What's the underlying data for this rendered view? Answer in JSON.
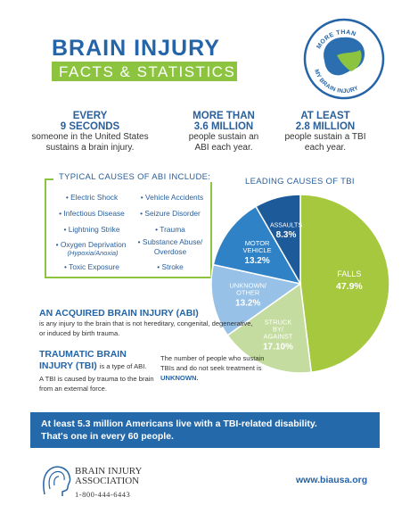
{
  "header": {
    "title": "BRAIN INJURY",
    "subtitle": "FACTS & STATISTICS"
  },
  "logo": {
    "top_text": "MORE THAN",
    "bottom_text": "MY BRAIN INJURY"
  },
  "stats": [
    {
      "big1": "EVERY",
      "big2": "9 SECONDS",
      "line1": "someone in the United States",
      "line2": "sustains a brain injury."
    },
    {
      "big1": "MORE THAN",
      "big2": "3.6 MILLION",
      "line1": "people sustain an",
      "line2": "ABI each year."
    },
    {
      "big1": "AT LEAST",
      "big2": "2.8 MILLION",
      "line1": "people sustain a TBI",
      "line2": "each year."
    }
  ],
  "causes": {
    "title": "TYPICAL CAUSES OF ABI INCLUDE:",
    "left": [
      "• Electric Shock",
      "• Infectious Disease",
      "• Lightning Strike",
      "• Oxygen Deprivation",
      "• Toxic Exposure"
    ],
    "left_sub": "(Hypoxia/Anoxia)",
    "right": [
      "• Vehicle Accidents",
      "• Seizure Disorder",
      "• Trauma",
      "• Substance Abuse/",
      "• Stroke"
    ],
    "right_sub": "Overdose"
  },
  "chart_data": {
    "type": "pie",
    "title": "LEADING CAUSES OF TBI",
    "slices": [
      {
        "label": "FALLS",
        "value": 47.9,
        "display": "47.9%",
        "color": "#a6c83f"
      },
      {
        "label": "STRUCK BY/ AGAINST",
        "value": 17.1,
        "display": "17.10%",
        "color": "#c5dca0"
      },
      {
        "label": "UNKNOWN/ OTHER",
        "value": 13.2,
        "display": "13.2%",
        "color": "#97c1e6"
      },
      {
        "label": "MOTOR VEHICLE",
        "value": 13.2,
        "display": "13.2%",
        "color": "#2f82c6"
      },
      {
        "label": "ASSAULTS",
        "value": 8.3,
        "display": "8.3%",
        "color": "#1c5a9a"
      }
    ]
  },
  "abi": {
    "heading": "AN ACQUIRED BRAIN INJURY (ABI)",
    "text": "is any injury to the brain that is not hereditary, congenital, degenerative, or induced by birth trauma."
  },
  "tbi": {
    "heading": "TRAUMATIC BRAIN INJURY (TBI)",
    "text1": "is a type of ABI.",
    "text2": "A TBI is caused by trauma to the brain from an external force."
  },
  "unknown": {
    "text": "The number of people who sustain TBIs and do not seek treatment is",
    "emph": "UNKNOWN."
  },
  "banner": {
    "line1": "At least 5.3 million Americans live with a TBI-related disability.",
    "line2": "That's one in every 60 people."
  },
  "footer": {
    "org1": "BRAIN INJURY",
    "org2": "ASSOCIATION",
    "phone": "1-800-444-6443",
    "url": "www.biausa.org"
  },
  "colors": {
    "blue": "#2464a7",
    "green": "#8dc43f",
    "banner": "#2469aa"
  }
}
